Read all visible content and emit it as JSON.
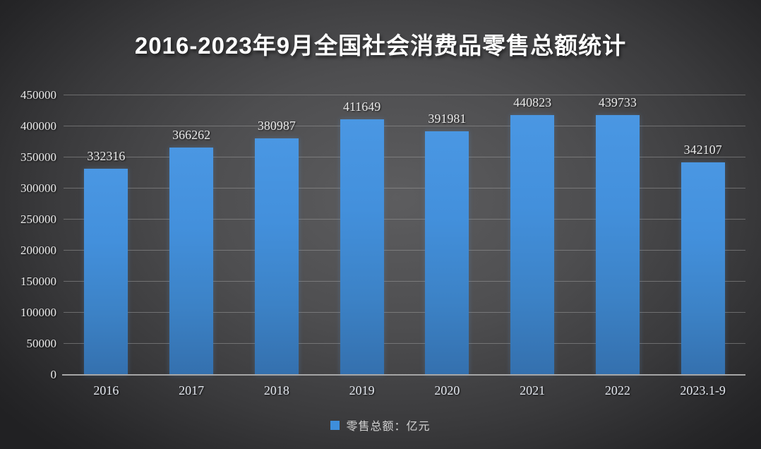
{
  "chart_data": {
    "type": "bar",
    "title": "2016-2023年9月全国社会消费品零售总额统计",
    "categories": [
      "2016",
      "2017",
      "2018",
      "2019",
      "2020",
      "2021",
      "2022",
      "2023.1-9"
    ],
    "values": [
      332316,
      366262,
      380987,
      411649,
      391981,
      440823,
      439733,
      342107
    ],
    "series": [
      {
        "name": "零售总额：亿元",
        "values": [
          332316,
          366262,
          380987,
          411649,
          391981,
          440823,
          439733,
          342107
        ]
      }
    ],
    "legend": "零售总额：亿元",
    "legend_position": "bottom",
    "xlabel": "",
    "ylabel": "",
    "ylim": [
      0,
      450000
    ],
    "y_tick_step": 50000,
    "y_ticks": [
      "0",
      "50000",
      "100000",
      "150000",
      "200000",
      "250000",
      "300000",
      "350000",
      "400000",
      "450000"
    ],
    "grid": true,
    "data_labels": true
  },
  "colors": {
    "bar_top": "#4a97e3",
    "bar_bottom": "#3470ae",
    "legend_swatch": "#3e8edb",
    "background_center": "#5d5d5f",
    "background_edge": "#212123",
    "gridline": "rgba(160,160,160,0.50)",
    "axis_line": "#a6a6a6",
    "title_text": "#ffffff",
    "label_text": "#e9e9e9"
  }
}
